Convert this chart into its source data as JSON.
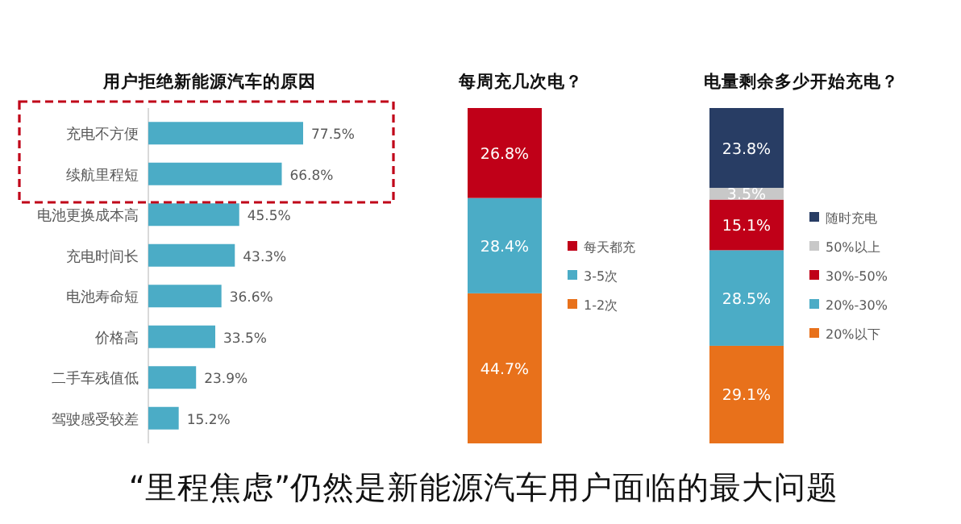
{
  "chart_data": [
    {
      "type": "bar",
      "orientation": "horizontal",
      "title": "用户拒绝新能源汽车的原因",
      "categories": [
        "充电不方便",
        "续航里程短",
        "电池更换成本高",
        "充电时间长",
        "电池寿命短",
        "价格高",
        "二手车残值低",
        "驾驶感受较差"
      ],
      "values": [
        77.5,
        66.8,
        45.5,
        43.3,
        36.6,
        33.5,
        23.9,
        15.2
      ],
      "value_labels": [
        "77.5%",
        "66.8%",
        "45.5%",
        "43.3%",
        "36.6%",
        "33.5%",
        "23.9%",
        "15.2%"
      ],
      "color": "#4bacc6",
      "annotations": [
        "“里程焦虑”仍然是新能源汽车用户面临的最大问题"
      ]
    },
    {
      "type": "bar",
      "stacked": true,
      "title": "每周充几次电？",
      "categories": [
        null
      ],
      "legend": "right",
      "series": [
        {
          "name": "1-2次",
          "color": "#e8711b",
          "values": [
            44.7
          ],
          "value_labels": [
            "44.7%"
          ]
        },
        {
          "name": "3-5次",
          "color": "#4bacc6",
          "values": [
            28.4
          ],
          "value_labels": [
            "28.4%"
          ]
        },
        {
          "name": "每天都充",
          "color": "#c00018",
          "values": [
            26.8
          ],
          "value_labels": [
            "26.8%"
          ]
        }
      ]
    },
    {
      "type": "bar",
      "stacked": true,
      "title": "电量剩余多少开始充电？",
      "categories": [
        null
      ],
      "legend": "right",
      "series": [
        {
          "name": "20%以下",
          "color": "#e8711b",
          "values": [
            29.1
          ],
          "value_labels": [
            "29.1%"
          ]
        },
        {
          "name": "20%-30%",
          "color": "#4bacc6",
          "values": [
            28.5
          ],
          "value_labels": [
            "28.5%"
          ]
        },
        {
          "name": "30%-50%",
          "color": "#c00018",
          "values": [
            15.1
          ],
          "value_labels": [
            "15.1%"
          ]
        },
        {
          "name": "50%以上",
          "color": "#c8c8c8",
          "values": [
            3.5
          ],
          "value_labels": [
            "3.5%"
          ]
        },
        {
          "name": "随时充电",
          "color": "#283d64",
          "values": [
            23.8
          ],
          "value_labels": [
            "23.8%"
          ]
        }
      ]
    }
  ]
}
